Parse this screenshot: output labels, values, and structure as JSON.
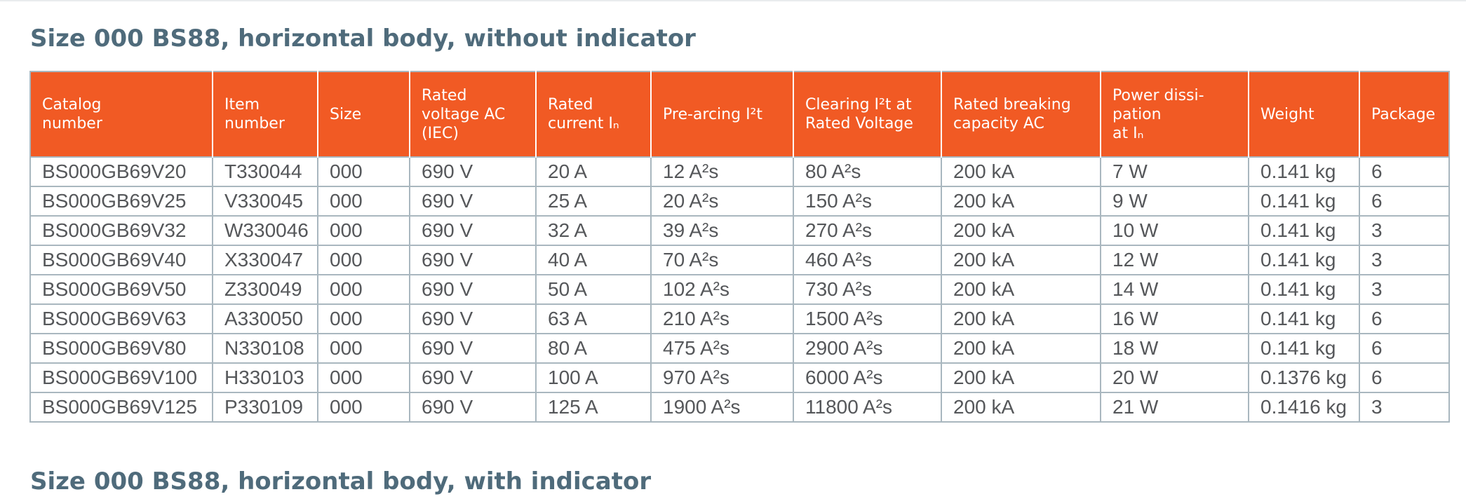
{
  "section_title": "Size 000 BS88, horizontal body, without indicator",
  "next_section_title": "Size 000 BS88, horizontal body, with indicator",
  "table": {
    "columns": [
      "Catalog\nnumber",
      "Item\nnumber",
      "Size",
      "Rated\nvoltage AC\n(IEC)",
      "Rated\ncurrent Iₙ",
      "Pre-arcing I²t",
      "Clearing I²t at\nRated Voltage",
      "Rated breaking\ncapacity AC",
      "Power dissi-\npation\nat Iₙ",
      "Weight",
      "Package"
    ],
    "rows": [
      [
        "BS000GB69V20",
        "T330044",
        "000",
        "690 V",
        "20 A",
        "12 A²s",
        "80 A²s",
        "200 kA",
        "7 W",
        "0.141 kg",
        "6"
      ],
      [
        "BS000GB69V25",
        "V330045",
        "000",
        "690 V",
        "25 A",
        "20 A²s",
        "150 A²s",
        "200 kA",
        "9 W",
        "0.141 kg",
        "6"
      ],
      [
        "BS000GB69V32",
        "W330046",
        "000",
        "690 V",
        "32 A",
        "39 A²s",
        "270 A²s",
        "200 kA",
        "10 W",
        "0.141 kg",
        "3"
      ],
      [
        "BS000GB69V40",
        "X330047",
        "000",
        "690 V",
        "40 A",
        "70 A²s",
        "460 A²s",
        "200 kA",
        "12 W",
        "0.141 kg",
        "3"
      ],
      [
        "BS000GB69V50",
        "Z330049",
        "000",
        "690 V",
        "50 A",
        "102 A²s",
        "730 A²s",
        "200 kA",
        "14 W",
        "0.141 kg",
        "3"
      ],
      [
        "BS000GB69V63",
        "A330050",
        "000",
        "690 V",
        "63 A",
        "210 A²s",
        "1500 A²s",
        "200 kA",
        "16 W",
        "0.141 kg",
        "6"
      ],
      [
        "BS000GB69V80",
        "N330108",
        "000",
        "690 V",
        "80 A",
        "475 A²s",
        "2900 A²s",
        "200 kA",
        "18 W",
        "0.141 kg",
        "6"
      ],
      [
        "BS000GB69V100",
        "H330103",
        "000",
        "690 V",
        "100 A",
        "970 A²s",
        "6000 A²s",
        "200 kA",
        "20 W",
        "0.1376 kg",
        "6"
      ],
      [
        "BS000GB69V125",
        "P330109",
        "000",
        "690 V",
        "125 A",
        "1900 A²s",
        "11800 A²s",
        "200 kA",
        "21 W",
        "0.1416 kg",
        "3"
      ]
    ]
  },
  "colors": {
    "header_bg": "#f15a24",
    "title_text": "#4f6b7b",
    "cell_border": "#a9b7bf",
    "cell_text": "#55575a"
  }
}
